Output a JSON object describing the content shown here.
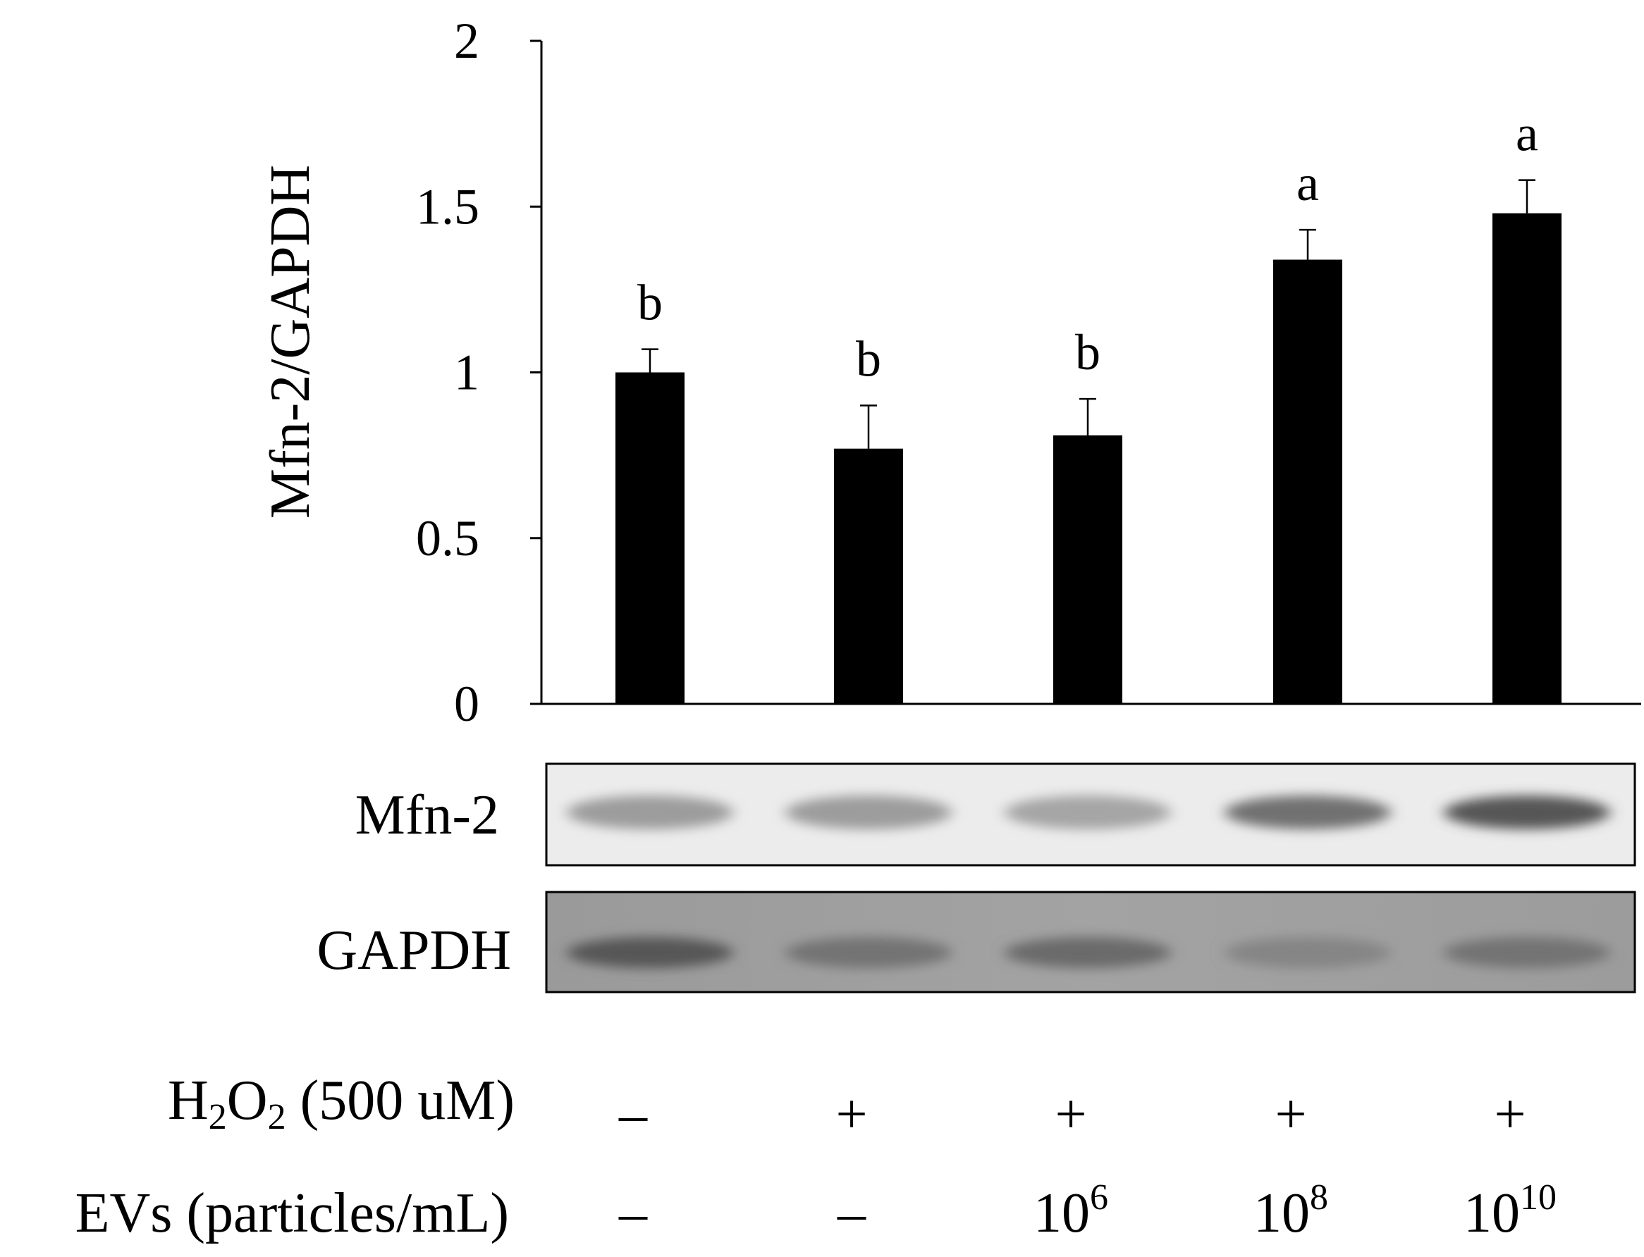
{
  "chart_data": {
    "type": "bar",
    "ylabel": "Mfn-2/GAPDH",
    "ylim": [
      0,
      2
    ],
    "yticks": [
      "0",
      "0.5",
      "1",
      "1.5",
      "2"
    ],
    "grid": false,
    "series": [
      {
        "values": [
          1.0,
          0.77,
          0.81,
          1.34,
          1.48
        ],
        "errors": [
          0.07,
          0.13,
          0.11,
          0.09,
          0.1
        ],
        "significance": [
          "b",
          "b",
          "b",
          "a",
          "a"
        ],
        "color": "#000000"
      }
    ]
  },
  "blots": {
    "mfn2_label": "Mfn-2",
    "gapdh_label": "GAPDH",
    "mfn2_intensity": [
      0.45,
      0.45,
      0.4,
      0.7,
      0.85
    ],
    "gapdh_intensity": [
      0.8,
      0.65,
      0.7,
      0.55,
      0.65
    ]
  },
  "conditions": {
    "h2o2": {
      "label_parts": [
        "H",
        "2",
        "O",
        "2",
        " (500 uM)"
      ],
      "values": [
        "–",
        "+",
        "+",
        "+",
        "+"
      ]
    },
    "evs": {
      "label": "EVs (particles/mL)",
      "values": [
        {
          "base": "–",
          "exp": ""
        },
        {
          "base": "–",
          "exp": ""
        },
        {
          "base": "10",
          "exp": "6"
        },
        {
          "base": "10",
          "exp": "8"
        },
        {
          "base": "10",
          "exp": "10"
        }
      ]
    }
  }
}
